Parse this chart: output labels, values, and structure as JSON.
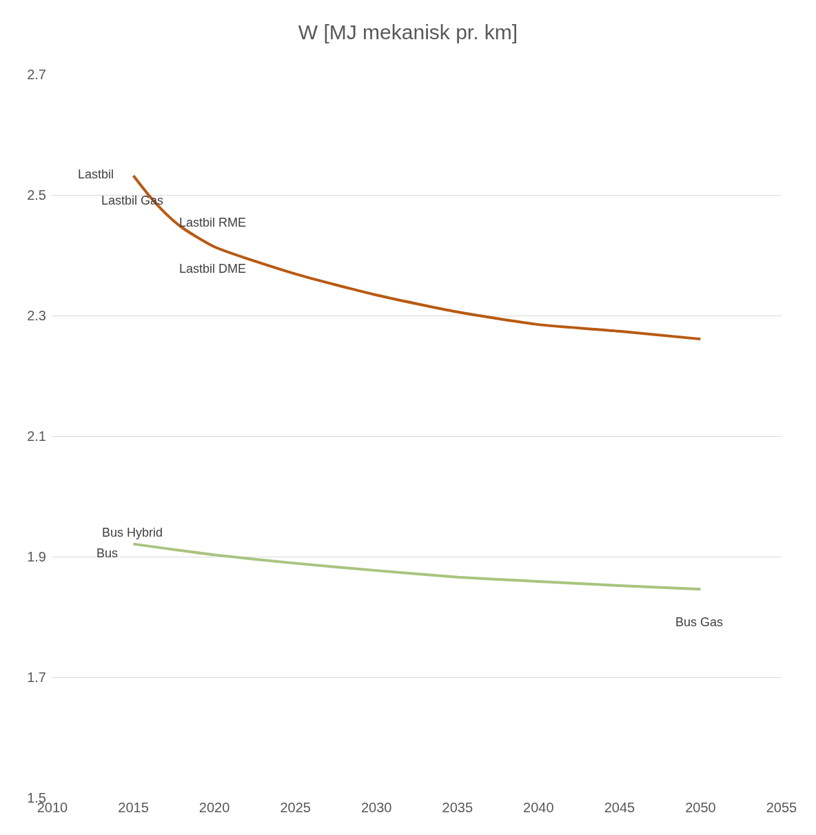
{
  "chart_data": {
    "type": "line",
    "title": "W [MJ mekanisk pr. km]",
    "x": [
      2015,
      2016,
      2017,
      2018,
      2020,
      2025,
      2030,
      2035,
      2040,
      2045,
      2050
    ],
    "series": [
      {
        "color": "#b85a12",
        "values": [
          2.532,
          2.498,
          2.469,
          2.446,
          2.414,
          2.369,
          2.334,
          2.306,
          2.285,
          2.274,
          2.261
        ]
      },
      {
        "color": "#a9c47f",
        "x": [
          2015,
          2020,
          2025,
          2030,
          2035,
          2040,
          2045,
          2050
        ],
        "values": [
          1.921,
          1.903,
          1.889,
          1.877,
          1.866,
          1.859,
          1.852,
          1.846
        ]
      }
    ],
    "annotations": [
      "Lastbil",
      "Lastbil Gas",
      "Lastbil RME",
      "Lastbil DME",
      "Bus Hybrid",
      "Bus",
      "Bus Gas"
    ],
    "xlim": [
      2010,
      2055
    ],
    "xticks": [
      2010,
      2015,
      2020,
      2025,
      2030,
      2035,
      2040,
      2045,
      2050,
      2055
    ],
    "ylim": [
      1.5,
      2.7
    ],
    "yticks": [
      1.5,
      1.7,
      1.9,
      2.1,
      2.3,
      2.5,
      2.7
    ],
    "grid": "y",
    "marker": "none",
    "line_style": "solid"
  }
}
